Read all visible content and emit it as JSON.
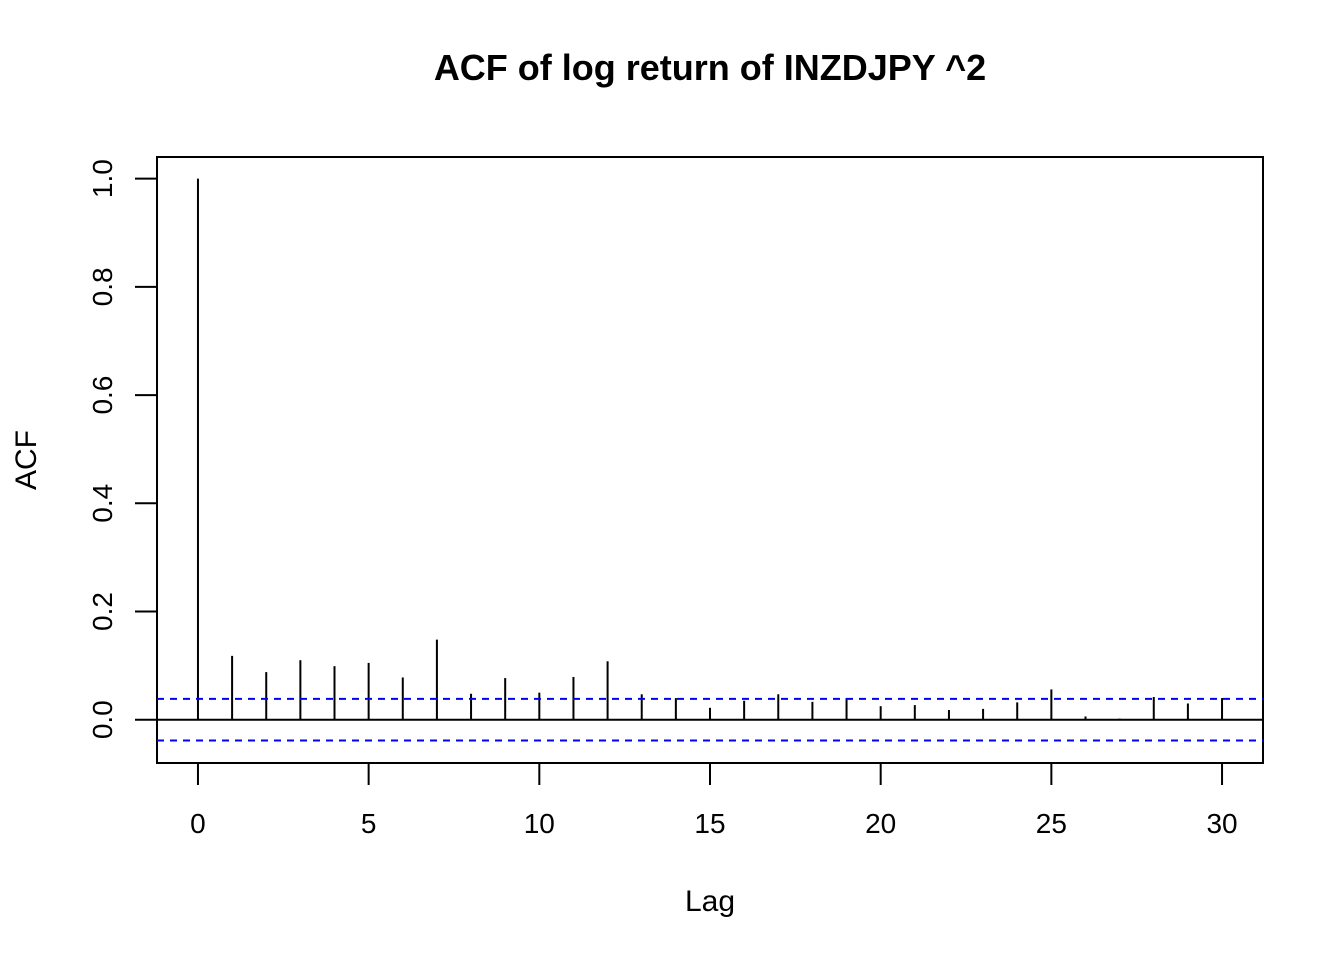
{
  "chart_data": {
    "type": "bar",
    "title": "ACF of log return of INZDJPY ^2",
    "xlabel": "Lag",
    "ylabel": "ACF",
    "xlim": [
      -1.2,
      31.2
    ],
    "ylim": [
      -0.08,
      1.04
    ],
    "x_ticks": [
      0,
      5,
      10,
      15,
      20,
      25,
      30
    ],
    "x_tick_labels": [
      "0",
      "5",
      "10",
      "15",
      "20",
      "25",
      "30"
    ],
    "y_ticks": [
      0.0,
      0.2,
      0.4,
      0.6,
      0.8,
      1.0
    ],
    "y_tick_labels": [
      "0.0",
      "0.2",
      "0.4",
      "0.6",
      "0.8",
      "1.0"
    ],
    "lags": [
      0,
      1,
      2,
      3,
      4,
      5,
      6,
      7,
      8,
      9,
      10,
      11,
      12,
      13,
      14,
      15,
      16,
      17,
      18,
      19,
      20,
      21,
      22,
      23,
      24,
      25,
      26,
      27,
      28,
      29,
      30
    ],
    "acf": [
      1.0,
      0.118,
      0.088,
      0.11,
      0.099,
      0.105,
      0.078,
      0.148,
      0.048,
      0.077,
      0.05,
      0.079,
      0.108,
      0.047,
      0.04,
      0.022,
      0.035,
      0.047,
      0.033,
      0.04,
      0.025,
      0.027,
      0.018,
      0.02,
      0.032,
      0.056,
      0.006,
      0.002,
      0.042,
      0.03,
      0.04
    ],
    "confidence_bound": 0.0385,
    "colors": {
      "bars": "#000000",
      "zero_line": "#000000",
      "confidence": "#0000ff"
    },
    "grid": false,
    "legend": "none"
  }
}
